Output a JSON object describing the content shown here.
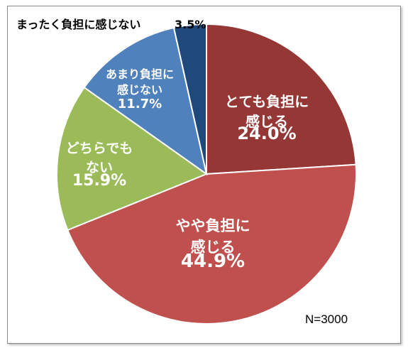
{
  "chart_data": {
    "type": "pie",
    "n_label": "N=3000",
    "slices": [
      {
        "label_lines": [
          "とても負担に",
          "感じる"
        ],
        "value": 24.0,
        "value_text": "24.0%",
        "color": "#953735"
      },
      {
        "label_lines": [
          "やや負担に",
          "感じる"
        ],
        "value": 44.9,
        "value_text": "44.9%",
        "color": "#c0504d"
      },
      {
        "label_lines": [
          "どちらでも",
          "ない"
        ],
        "value": 15.9,
        "value_text": "15.9%",
        "color": "#9bbb59"
      },
      {
        "label_lines": [
          "あまり負担に",
          "感じない"
        ],
        "value": 11.7,
        "value_text": "11.7%",
        "color": "#4f81bd"
      },
      {
        "label_lines": [
          "まったく負担に感じない"
        ],
        "value": 3.5,
        "value_text": "3.5%",
        "color": "#1f497d"
      }
    ]
  }
}
